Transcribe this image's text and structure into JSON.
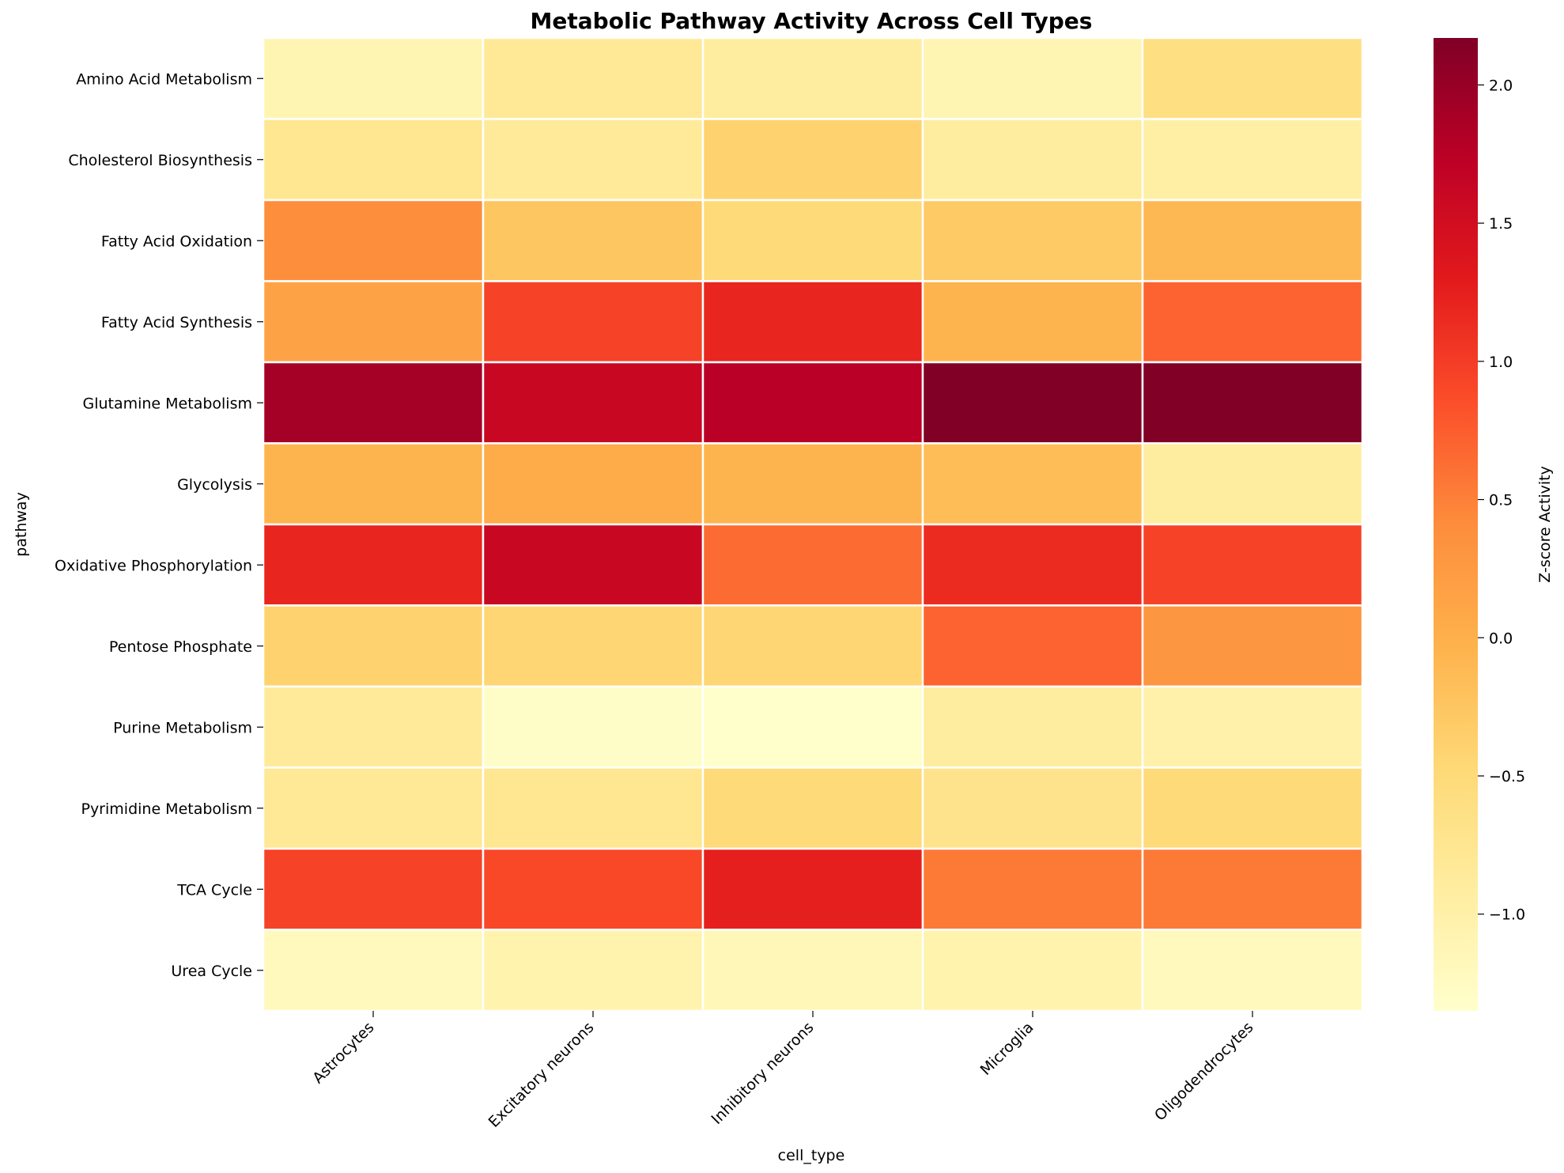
{
  "chart_data": {
    "type": "heatmap",
    "title": "Metabolic Pathway Activity Across Cell Types",
    "xlabel": "cell_type",
    "ylabel": "pathway",
    "colorbar_label": "Z-score Activity",
    "colormap": "YlOrRd",
    "color_range": [
      -1.35,
      2.17
    ],
    "colorbar_ticks": [
      "2.0",
      "1.5",
      "1.0",
      "0.5",
      "0.0",
      "−0.5",
      "−1.0"
    ],
    "colorbar_tick_values": [
      2.0,
      1.5,
      1.0,
      0.5,
      0.0,
      -0.5,
      -1.0
    ],
    "columns": [
      "Astrocytes",
      "Excitatory neurons",
      "Inhibitory neurons",
      "Microglia",
      "Oligodendrocytes"
    ],
    "rows": [
      "Amino Acid Metabolism",
      "Cholesterol Biosynthesis",
      "Fatty Acid Oxidation",
      "Fatty Acid Synthesis",
      "Glutamine Metabolism",
      "Glycolysis",
      "Oxidative Phosphorylation",
      "Pentose Phosphate",
      "Purine Metabolism",
      "Pyrimidine Metabolism",
      "TCA Cycle",
      "Urea Cycle"
    ],
    "values": [
      [
        -1.1,
        -0.8,
        -0.9,
        -1.1,
        -0.6
      ],
      [
        -0.75,
        -0.85,
        -0.4,
        -0.9,
        -0.95
      ],
      [
        0.4,
        -0.25,
        -0.5,
        -0.3,
        -0.1
      ],
      [
        0.15,
        0.95,
        1.2,
        -0.05,
        0.7
      ],
      [
        1.9,
        1.6,
        1.75,
        2.17,
        2.17
      ],
      [
        -0.05,
        0.05,
        -0.05,
        -0.15,
        -0.9
      ],
      [
        1.2,
        1.6,
        0.65,
        1.15,
        0.95
      ],
      [
        -0.4,
        -0.45,
        -0.45,
        0.7,
        0.3
      ],
      [
        -0.85,
        -1.3,
        -1.35,
        -0.9,
        -1.0
      ],
      [
        -0.8,
        -0.75,
        -0.5,
        -0.7,
        -0.5
      ],
      [
        0.95,
        0.9,
        1.25,
        0.55,
        0.55
      ],
      [
        -1.2,
        -1.05,
        -1.15,
        -1.05,
        -1.2
      ]
    ]
  }
}
